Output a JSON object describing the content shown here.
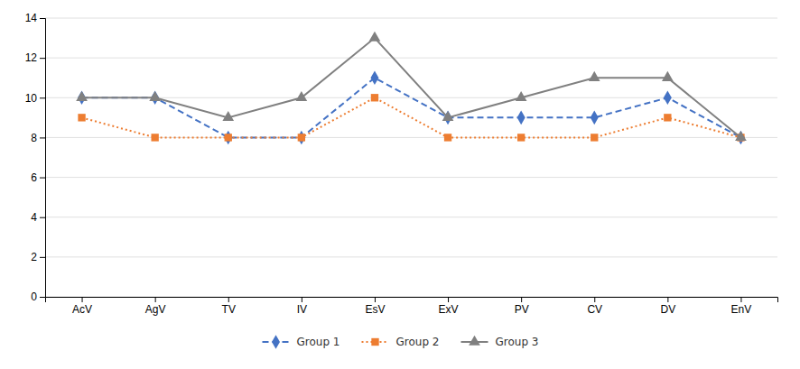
{
  "chart_data": {
    "type": "line",
    "categories": [
      "AcV",
      "AgV",
      "TV",
      "IV",
      "EsV",
      "ExV",
      "PV",
      "CV",
      "DV",
      "EnV"
    ],
    "series": [
      {
        "name": "Group 1",
        "color": "#4472C4",
        "marker": "diamond",
        "line_style": "dashed",
        "values": [
          10,
          10,
          8,
          8,
          11,
          9,
          9,
          9,
          10,
          8
        ]
      },
      {
        "name": "Group 2",
        "color": "#ED7D31",
        "marker": "square",
        "line_style": "dotted",
        "values": [
          9,
          8,
          8,
          8,
          10,
          8,
          8,
          8,
          9,
          8
        ]
      },
      {
        "name": "Group 3",
        "color": "#808080",
        "marker": "triangle",
        "line_style": "solid",
        "values": [
          10,
          10,
          9,
          10,
          13,
          9,
          10,
          11,
          11,
          8
        ]
      }
    ],
    "ylim": [
      0,
      14
    ],
    "yticks": [
      0,
      2,
      4,
      6,
      8,
      10,
      12,
      14
    ],
    "grid": true,
    "legend": "bottom"
  }
}
